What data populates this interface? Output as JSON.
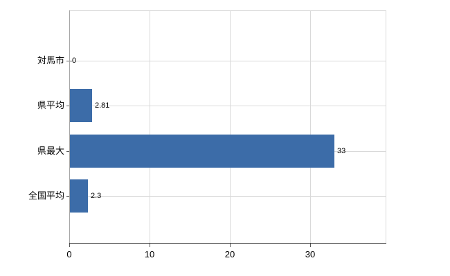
{
  "chart": {
    "background": "#ffffff"
  },
  "chart_data": {
    "type": "bar",
    "orientation": "horizontal",
    "title": "",
    "xlabel": "",
    "ylabel": "",
    "categories": [
      "対馬市",
      "県平均",
      "県最大",
      "全国平均"
    ],
    "values": [
      0,
      2.81,
      33,
      2.3
    ],
    "value_labels": [
      "0",
      "2.81",
      "33",
      "2.3"
    ],
    "xticks": [
      0,
      10,
      20,
      30
    ],
    "xtick_labels": [
      "0",
      "10",
      "20",
      "30"
    ],
    "xlim": [
      0,
      39.4
    ],
    "grid": true,
    "legend": false,
    "bar_color": "#3c6ca8",
    "grid_color": "#d9d9d9",
    "axis_color": "#333333",
    "text_color": "#000000"
  }
}
